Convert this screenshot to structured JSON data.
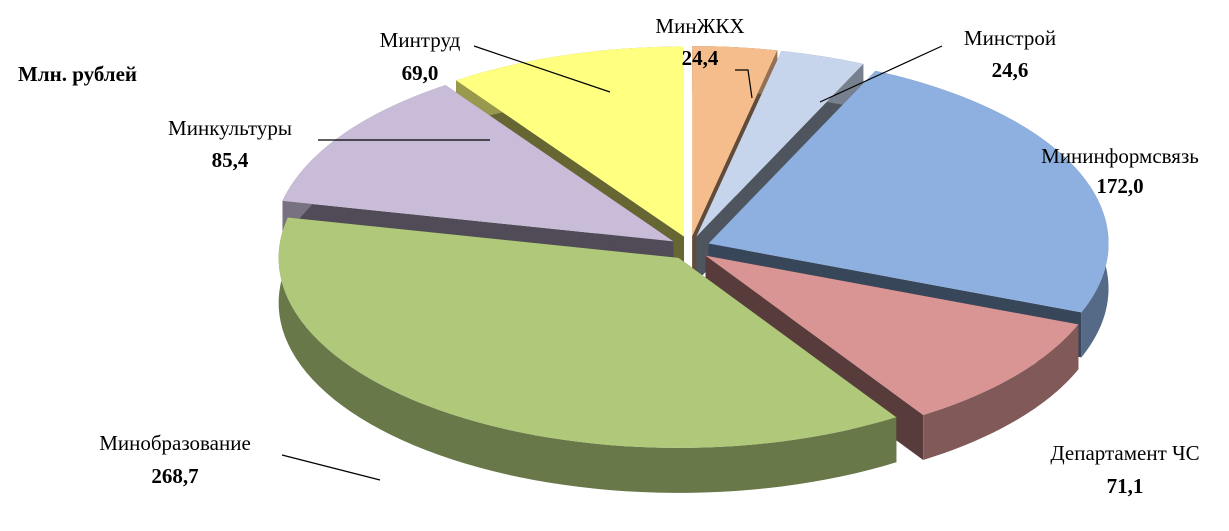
{
  "chart_data": {
    "type": "pie3d",
    "title": "Млн. рублей",
    "categories": [
      "МинЖКХ",
      "Минстрой",
      "Мининформсвязь",
      "Департамент ЧС",
      "Минобразование",
      "Минкультуры",
      "Минтруд"
    ],
    "values": [
      24.4,
      24.6,
      172.0,
      71.1,
      268.7,
      85.4,
      69.0
    ],
    "value_labels": [
      "24,4",
      "24,6",
      "172,0",
      "71,1",
      "268,7",
      "85,4",
      "69,0"
    ],
    "colors": [
      "#f5bc8c",
      "#c6d5ec",
      "#8db0e0",
      "#d99594",
      "#afc87a",
      "#c8bcd8",
      "#ffff80"
    ]
  }
}
